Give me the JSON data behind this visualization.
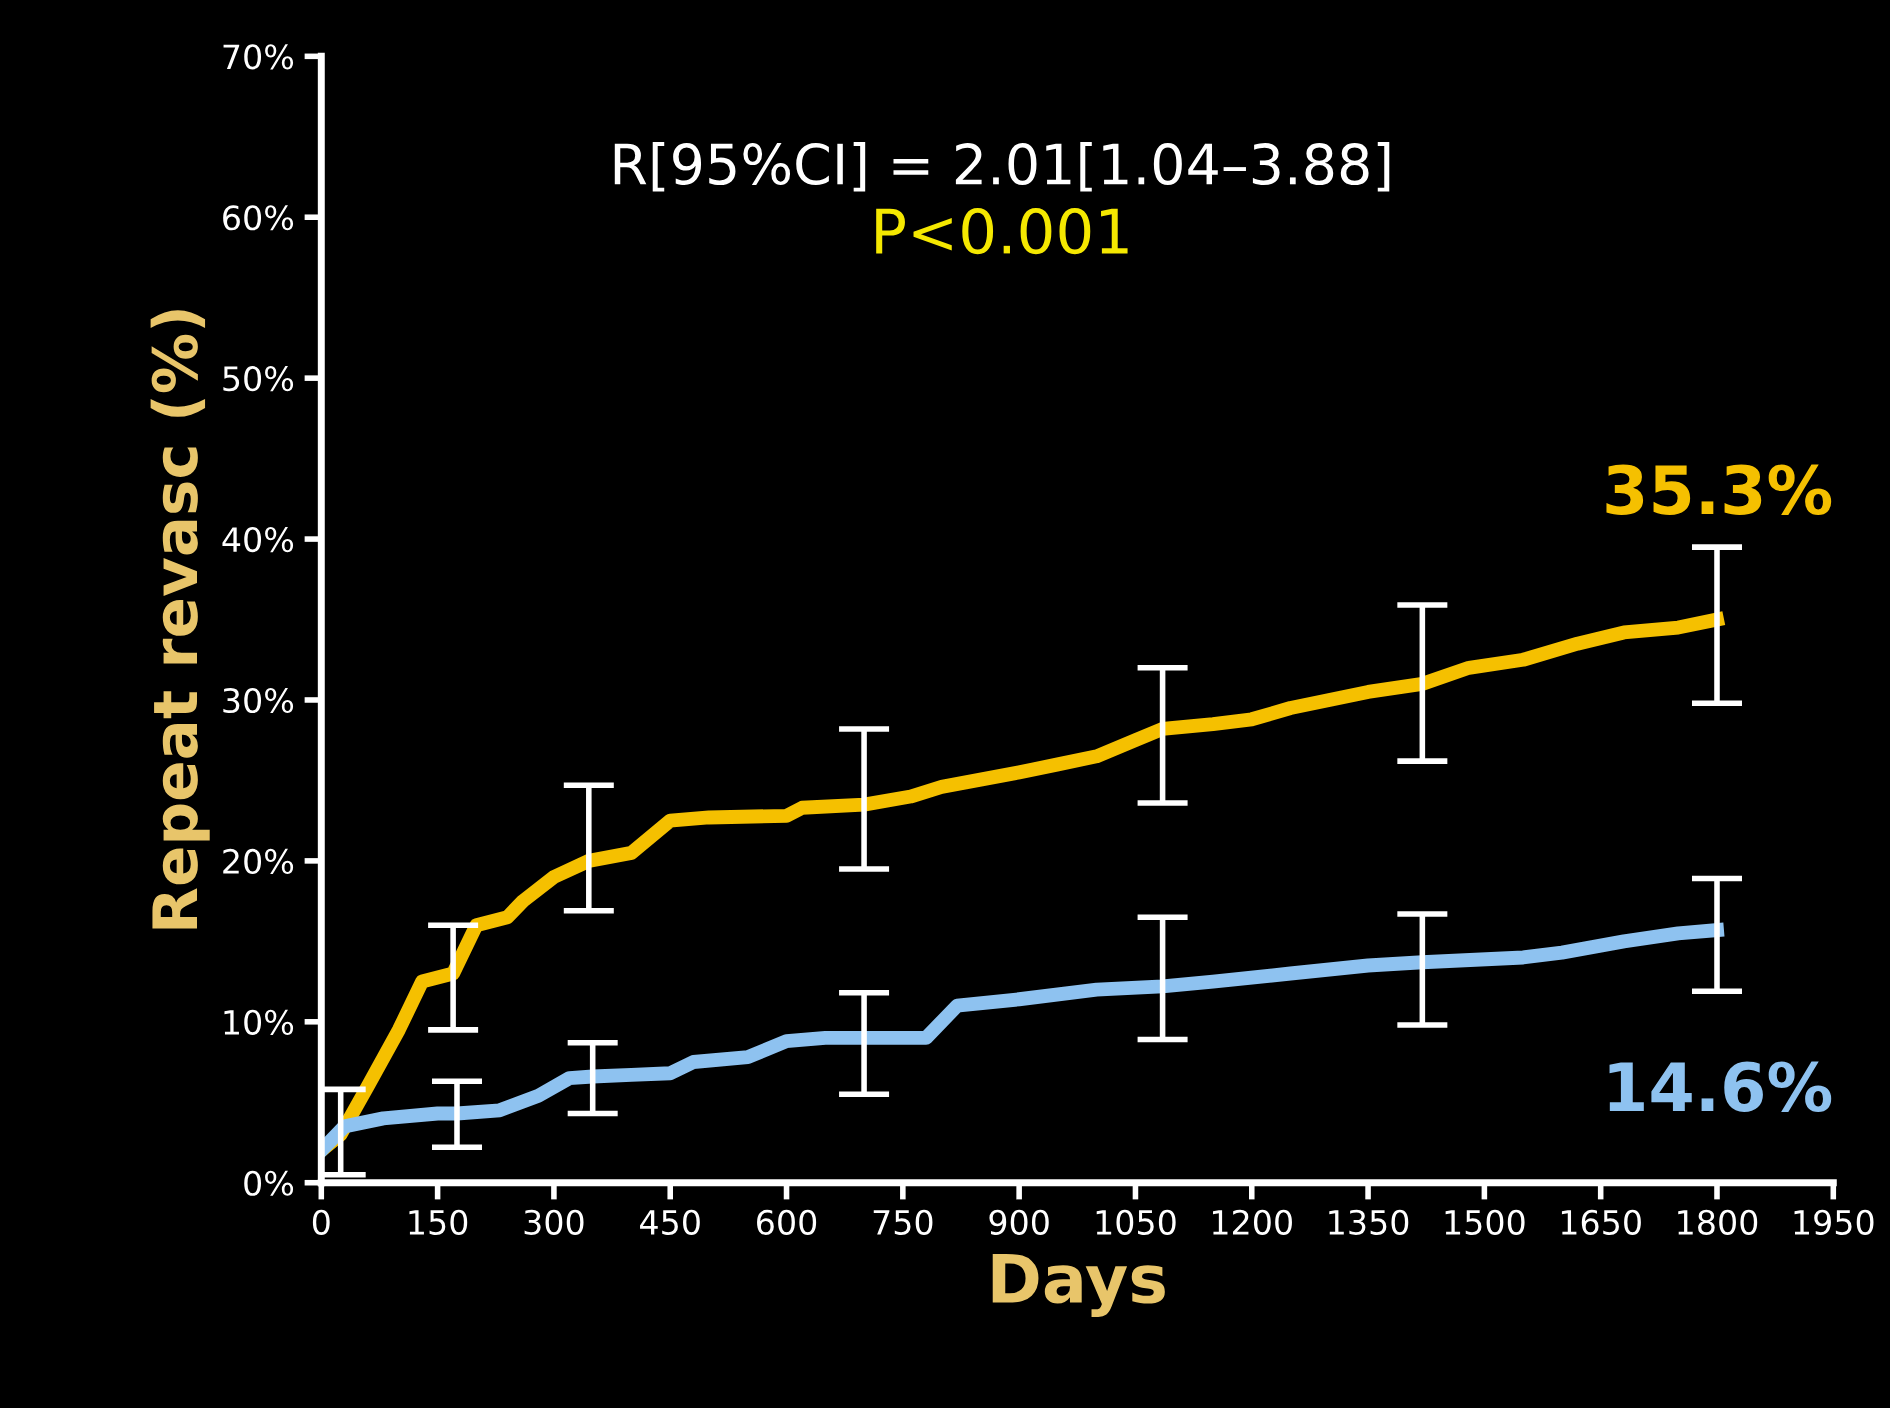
{
  "chart_data": {
    "type": "line",
    "xlabel": "Days",
    "ylabel": "Repeat revasc (%)",
    "annotations": [
      "R[95%CI] = 2.01[1.04–3.88]",
      "P<0.001",
      "35.3%",
      "14.6%"
    ],
    "xlim": [
      0,
      1950
    ],
    "xticks": [
      0,
      150,
      300,
      450,
      600,
      750,
      900,
      1050,
      1200,
      1350,
      1500,
      1650,
      1800,
      1950
    ],
    "ylim": [
      0,
      70
    ],
    "yticks": [
      {
        "value": 0,
        "label": "0%"
      },
      {
        "value": 10,
        "label": "10%"
      },
      {
        "value": 20,
        "label": "20%"
      },
      {
        "value": 30,
        "label": "30%"
      },
      {
        "value": 40,
        "label": "40%"
      },
      {
        "value": 50,
        "label": "50%"
      },
      {
        "value": 60,
        "label": "60%"
      },
      {
        "value": 70,
        "label": "70%"
      }
    ],
    "grid": false,
    "marker": "none",
    "line_style": "solid",
    "series": [
      {
        "color": "#f5c000",
        "x": [
          0,
          25,
          60,
          100,
          130,
          170,
          200,
          240,
          260,
          300,
          345,
          400,
          450,
          500,
          600,
          620,
          700,
          760,
          800,
          900,
          950,
          1000,
          1050,
          1085,
          1150,
          1200,
          1250,
          1300,
          1350,
          1420,
          1480,
          1550,
          1620,
          1680,
          1750,
          1800
        ],
        "values": [
          2,
          3,
          6,
          9.5,
          12.5,
          13,
          16,
          16.5,
          17.5,
          19,
          20,
          20.5,
          22.5,
          22.7,
          22.8,
          23.3,
          23.5,
          24,
          24.6,
          25.5,
          26,
          26.5,
          27.5,
          28.2,
          28.5,
          28.8,
          29.5,
          30,
          30.5,
          31,
          32,
          32.5,
          33.5,
          34.2,
          34.5,
          35
        ],
        "errors": [
          null,
          [
            0.5,
            5.8
          ],
          null,
          null,
          null,
          [
            9.5,
            16
          ],
          null,
          null,
          null,
          null,
          [
            16.9,
            24.7
          ],
          null,
          null,
          null,
          null,
          null,
          [
            19.5,
            28.2
          ],
          null,
          null,
          null,
          null,
          null,
          null,
          [
            23.6,
            32
          ],
          null,
          null,
          null,
          null,
          null,
          [
            26.2,
            35.9
          ],
          null,
          null,
          null,
          null,
          null,
          [
            29.8,
            39.5
          ]
        ]
      },
      {
        "color": "#8ec2f0",
        "x": [
          0,
          30,
          80,
          150,
          175,
          230,
          280,
          320,
          350,
          400,
          450,
          480,
          550,
          600,
          650,
          700,
          780,
          820,
          900,
          1000,
          1085,
          1150,
          1250,
          1350,
          1420,
          1550,
          1600,
          1680,
          1750,
          1800
        ],
        "values": [
          2,
          3.5,
          4,
          4.3,
          4.3,
          4.5,
          5.4,
          6.5,
          6.6,
          6.7,
          6.8,
          7.5,
          7.8,
          8.8,
          9,
          9,
          9,
          11,
          11.4,
          12,
          12.2,
          12.5,
          13,
          13.5,
          13.7,
          14,
          14.3,
          15,
          15.5,
          15.7
        ],
        "errors": [
          null,
          null,
          null,
          null,
          [
            2.2,
            6.3
          ],
          null,
          null,
          null,
          [
            4.3,
            8.7
          ],
          null,
          null,
          null,
          null,
          null,
          null,
          [
            5.5,
            11.8
          ],
          null,
          null,
          null,
          null,
          [
            8.9,
            16.5
          ],
          null,
          null,
          null,
          [
            9.8,
            16.7
          ],
          null,
          null,
          null,
          null,
          [
            11.9,
            18.9
          ]
        ]
      }
    ]
  }
}
